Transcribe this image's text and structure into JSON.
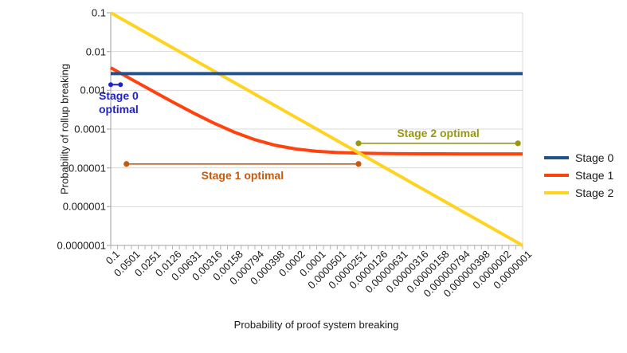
{
  "chart_data": {
    "type": "line",
    "title": "",
    "xlabel": "Probability of proof system breaking",
    "ylabel": "Probability of rollup breaking",
    "x_scale": "log-descending",
    "y_scale": "log",
    "x_range": [
      0.1,
      1e-07
    ],
    "y_range": [
      0.1,
      1e-07
    ],
    "grid": "horizontal",
    "legend_position": "right",
    "colors": {
      "grid": "#d9d9d9",
      "axis": "#b3b3b3",
      "text": "#1a1a1a"
    },
    "x_tick_labels": [
      "0.1",
      "0.0501",
      "0.0251",
      "0.0126",
      "0.00631",
      "0.00316",
      "0.00158",
      "0.000794",
      "0.000398",
      "0.0002",
      "0.0001",
      "0.0000501",
      "0.0000251",
      "0.0000126",
      "0.00000631",
      "0.00000316",
      "0.00000158",
      "0.000000794",
      "0.000000398",
      "0.0000002",
      "0.0000001"
    ],
    "y_tick_labels": [
      "0.1",
      "0.01",
      "0.001",
      "0.0001",
      "0.00001",
      "0.000001",
      "0.0000001"
    ],
    "series": [
      {
        "name": "Stage 0",
        "color": "#1f5291",
        "x": [
          0.1,
          1e-07
        ],
        "y": [
          0.0027,
          0.0027
        ]
      },
      {
        "name": "Stage 1",
        "color": "#ff420e",
        "x": [
          0.1,
          0.0501,
          0.0251,
          0.0126,
          0.00631,
          0.00316,
          0.00158,
          0.000794,
          0.000398,
          0.0002,
          0.0001,
          5.01e-05,
          2.51e-05,
          1.26e-05,
          6.31e-06,
          3.16e-06,
          1.58e-06,
          7.94e-07,
          3.98e-07,
          2e-07,
          1e-07
        ],
        "y": [
          0.00382,
          0.00193,
          0.000978,
          0.000502,
          0.000263,
          0.000143,
          8.33e-05,
          5.32e-05,
          3.81e-05,
          3.06e-05,
          2.68e-05,
          2.49e-05,
          2.4e-05,
          2.35e-05,
          2.32e-05,
          2.31e-05,
          2.31e-05,
          2.3e-05,
          2.3e-05,
          2.3e-05,
          2.3e-05
        ]
      },
      {
        "name": "Stage 2",
        "color": "#ffd320",
        "x": [
          0.1,
          1e-07
        ],
        "y": [
          0.1,
          1e-07
        ]
      }
    ],
    "legend": [
      {
        "label": "Stage 0",
        "color": "#1f5291"
      },
      {
        "label": "Stage 1",
        "color": "#ff420e"
      },
      {
        "label": "Stage 2",
        "color": "#ffd320"
      }
    ],
    "annotations": [
      {
        "label": "Stage 0 optimal",
        "label_lines": [
          "Stage 0",
          "optimal"
        ],
        "color": "#2222cc",
        "x1": 0.1,
        "x2": 0.072,
        "y": 0.0014,
        "label_align": "left",
        "label_offset": [
          -15,
          6
        ]
      },
      {
        "label": "Stage 1 optimal",
        "color": "#c55a11",
        "x1": 0.059,
        "x2": 2.46e-05,
        "y": 1.26e-05,
        "label_align": "center",
        "label_offset": [
          0,
          6
        ]
      },
      {
        "label": "Stage 2 optimal",
        "color": "#98980d",
        "x1": 2.46e-05,
        "x2": 1.17e-07,
        "y": 4.3e-05,
        "label_align": "center",
        "label_offset": [
          0,
          -21
        ]
      }
    ]
  }
}
